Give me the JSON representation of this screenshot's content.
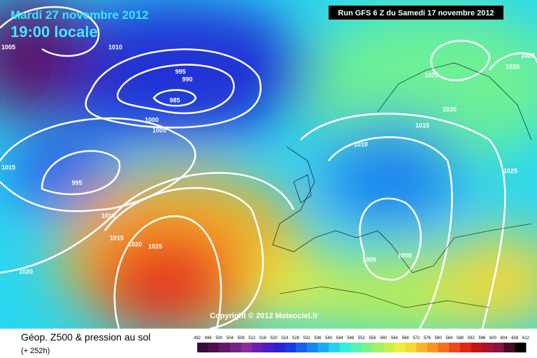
{
  "header": {
    "date": "Mardi 27 novembre 2012",
    "time": "19:00 locale",
    "run": "Run GFS 6 Z du Samedi 17 novembre 2012"
  },
  "map": {
    "copyright": "Copyright © 2012 Meteociel.fr",
    "isobar_labels": [
      1005,
      1010,
      995,
      990,
      985,
      1000,
      1005,
      1015,
      995,
      1010,
      1015,
      1020,
      1025,
      1020,
      1025,
      1020,
      1025,
      1020,
      1015,
      1010,
      1025,
      1005,
      1000
    ]
  },
  "legend": {
    "title": "Géop. Z500 & pression au sol",
    "lead": "(+ 252h)",
    "ticks": [
      492,
      496,
      500,
      504,
      508,
      512,
      516,
      520,
      524,
      528,
      532,
      536,
      540,
      544,
      548,
      552,
      556,
      560,
      564,
      568,
      572,
      576,
      580,
      584,
      588,
      592,
      596,
      600,
      604,
      608,
      612
    ],
    "colors": [
      "#3a0a3a",
      "#4e0f52",
      "#62186a",
      "#762283",
      "#8a2c9c",
      "#6a1fb0",
      "#4a1ec8",
      "#2a22d8",
      "#1a3ae6",
      "#1660ee",
      "#1286f2",
      "#18acf4",
      "#22d2f0",
      "#32eedc",
      "#56f2b4",
      "#7cf08c",
      "#a4ee6a",
      "#c8ee4e",
      "#eeee3e",
      "#f6d834",
      "#f8b82a",
      "#f69424",
      "#f2701e",
      "#ec4a1a",
      "#e22616",
      "#c81414",
      "#a8142c",
      "#881448",
      "#4a0a28",
      "#000000"
    ]
  }
}
